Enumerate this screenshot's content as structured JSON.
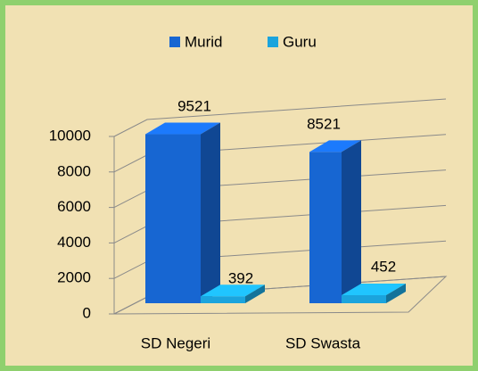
{
  "chart_data": {
    "type": "bar3d",
    "categories": [
      "SD Negeri",
      "SD Swasta"
    ],
    "series": [
      {
        "name": "Murid",
        "color": "#1766d2",
        "values": [
          9521,
          8521
        ]
      },
      {
        "name": "Guru",
        "color": "#1ba4dd",
        "values": [
          392,
          452
        ]
      }
    ],
    "ylim": [
      0,
      10000
    ],
    "yticks": [
      0,
      2000,
      4000,
      6000,
      8000,
      10000
    ],
    "grid": true,
    "legend": "top"
  }
}
